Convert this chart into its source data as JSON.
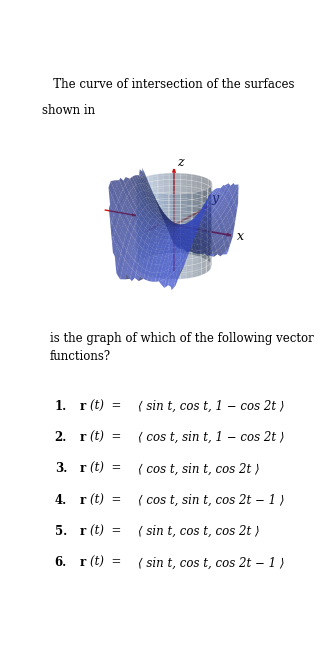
{
  "title_text1": "   The curve of intersection of the surfaces",
  "title_text2": "shown in",
  "bottom_text": "is the graph of which of the following vector\nfunctions?",
  "options": [
    {
      "num": "1.",
      "r_text": "r",
      "expr1": "(t)",
      "expr2": " = ",
      "expr3": "⟨ sin t, cos t, 1 − cos 2t ⟩"
    },
    {
      "num": "2.",
      "r_text": "r",
      "expr1": "(t)",
      "expr2": " = ",
      "expr3": "⟨ cos t, sin t, 1 − cos 2t ⟩"
    },
    {
      "num": "3.",
      "r_text": "r",
      "expr1": "(t)",
      "expr2": " = ",
      "expr3": "⟨ cos t, sin t, cos 2t ⟩"
    },
    {
      "num": "4.",
      "r_text": "r",
      "expr1": "(t)",
      "expr2": " = ",
      "expr3": "⟨ cos t, sin t, cos 2t − 1 ⟩"
    },
    {
      "num": "5.",
      "r_text": "r",
      "expr1": "(t)",
      "expr2": " = ",
      "expr3": "⟨ sin t, cos t, cos 2t ⟩"
    },
    {
      "num": "6.",
      "r_text": "r",
      "expr1": "(t)",
      "expr2": " = ",
      "expr3": "⟨ sin t, cos t, cos 2t − 1 ⟩"
    }
  ],
  "cylinder_color": "#aac8ee",
  "cylinder_alpha": 0.5,
  "saddle_color": "#3348cc",
  "saddle_alpha": 0.7,
  "axis_color": "#cc1111",
  "background_color": "#ffffff",
  "fig_width": 3.34,
  "fig_height": 6.52,
  "elev": 18,
  "azim": -60
}
